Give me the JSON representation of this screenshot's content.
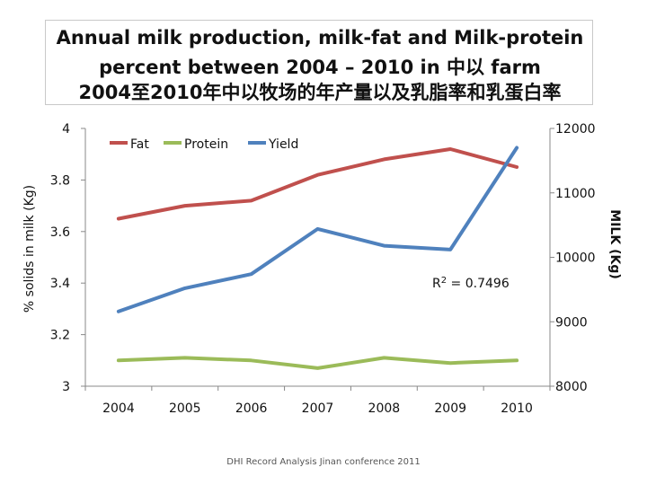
{
  "title": {
    "line1": "Annual milk production, milk-fat and Milk-protein",
    "line2": "percent between 2004 – 2010 in 中以 farm",
    "line3": "2004至2010年中以牧场的年产量以及乳脂率和乳蛋白率"
  },
  "footer": "DHI Record Analysis Jinan conference 2011",
  "colors": {
    "fat": "#c0504d",
    "protein": "#9bbb59",
    "yield": "#4f81bd"
  },
  "chart_data": {
    "type": "line",
    "categories": [
      "2004",
      "2005",
      "2006",
      "2007",
      "2008",
      "2009",
      "2010"
    ],
    "ylabel": "% solids in milk (Kg)",
    "y2label": "MILK (Kg)",
    "ylim": [
      3,
      4
    ],
    "yticks": [
      "3",
      "3.2",
      "3.4",
      "3.6",
      "3.8",
      "4"
    ],
    "y2lim": [
      8000,
      12000
    ],
    "y2ticks": [
      "8000",
      "9000",
      "10000",
      "11000",
      "12000"
    ],
    "legend": "top-left",
    "grid": false,
    "annotation": "R2 = 0.7496",
    "series": [
      {
        "name": "Fat",
        "axis": "left",
        "color": "#c0504d",
        "values": [
          3.65,
          3.7,
          3.72,
          3.82,
          3.88,
          3.92,
          3.85
        ]
      },
      {
        "name": "Protein",
        "axis": "left",
        "color": "#9bbb59",
        "values": [
          3.1,
          3.11,
          3.1,
          3.07,
          3.11,
          3.09,
          3.1
        ]
      },
      {
        "name": "Yield",
        "axis": "right",
        "color": "#4f81bd",
        "values": [
          9160,
          9520,
          9740,
          10440,
          10180,
          10120,
          11700
        ]
      }
    ]
  }
}
